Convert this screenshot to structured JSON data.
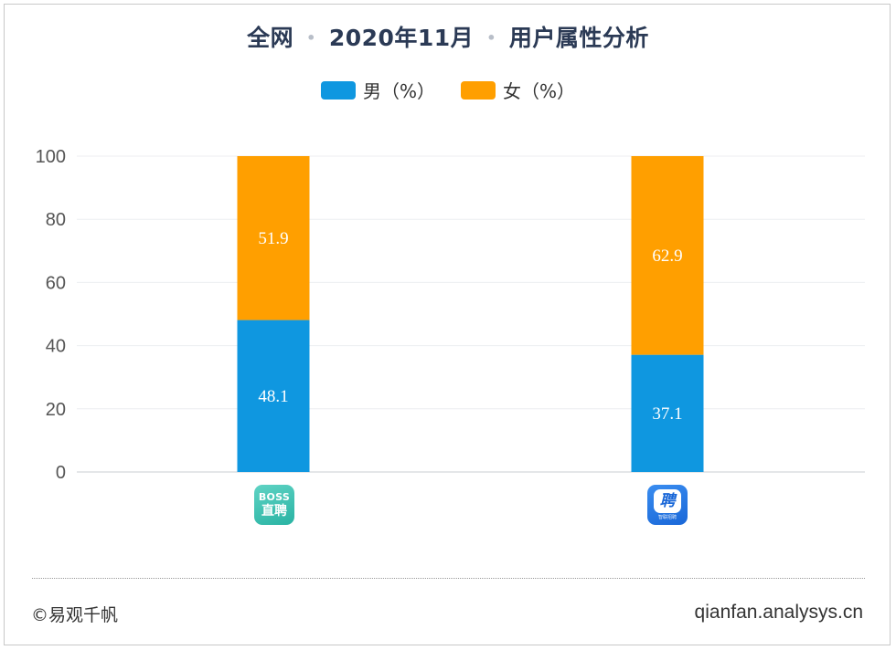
{
  "title": {
    "part1": "全网",
    "part2": "2020年11月",
    "part3": "用户属性分析",
    "separator": "•"
  },
  "legend": [
    {
      "label": "男（%）",
      "color": "#0f97e0"
    },
    {
      "label": "女（%）",
      "color": "#ff9f00"
    }
  ],
  "chart_data": {
    "type": "bar",
    "stacked": true,
    "categories": [
      "BOSS直聘",
      "智联招聘"
    ],
    "series": [
      {
        "name": "男（%）",
        "color": "#0f97e0",
        "values": [
          48.1,
          37.1
        ]
      },
      {
        "name": "女（%）",
        "color": "#ff9f00",
        "values": [
          51.9,
          62.9
        ]
      }
    ],
    "ylim": [
      0,
      100
    ],
    "yticks": [
      0,
      20,
      40,
      60,
      80,
      100
    ],
    "grid": true,
    "legend_position": "top-center"
  },
  "icons": [
    {
      "name": "boss-zhipin-app-icon",
      "line1": "BOSS",
      "line2": "直聘"
    },
    {
      "name": "zhilian-app-icon",
      "glyph": "聘",
      "caption": "智联招聘"
    }
  ],
  "footer": {
    "copyright": "©易观千帆",
    "site": "qianfan.analysys.cn"
  }
}
